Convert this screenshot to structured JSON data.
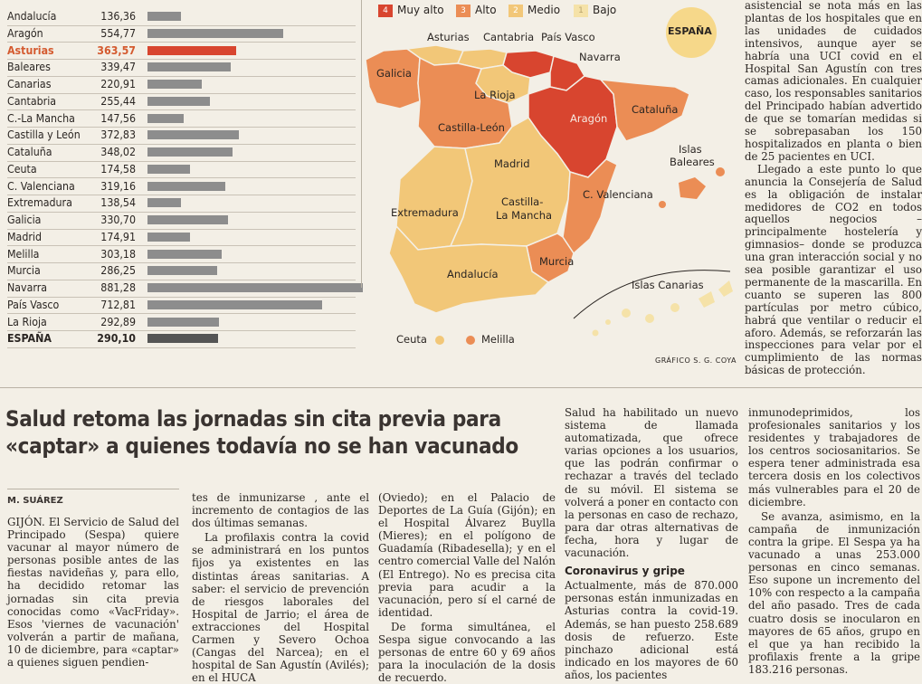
{
  "table": {
    "rows": [
      {
        "name": "Andalucía",
        "value": "136,36",
        "num": 136.36
      },
      {
        "name": "Aragón",
        "value": "554,77",
        "num": 554.77
      },
      {
        "name": "Asturias",
        "value": "363,57",
        "num": 363.57,
        "highlight": true
      },
      {
        "name": "Baleares",
        "value": "339,47",
        "num": 339.47
      },
      {
        "name": "Canarias",
        "value": "220,91",
        "num": 220.91
      },
      {
        "name": "Cantabria",
        "value": "255,44",
        "num": 255.44
      },
      {
        "name": "C.-La Mancha",
        "value": "147,56",
        "num": 147.56
      },
      {
        "name": "Castilla y León",
        "value": "372,83",
        "num": 372.83
      },
      {
        "name": "Cataluña",
        "value": "348,02",
        "num": 348.02
      },
      {
        "name": "Ceuta",
        "value": "174,58",
        "num": 174.58
      },
      {
        "name": "C. Valenciana",
        "value": "319,16",
        "num": 319.16
      },
      {
        "name": "Extremadura",
        "value": "138,54",
        "num": 138.54
      },
      {
        "name": "Galicia",
        "value": "330,70",
        "num": 330.7
      },
      {
        "name": "Madrid",
        "value": "174,91",
        "num": 174.91
      },
      {
        "name": "Melilla",
        "value": "303,18",
        "num": 303.18
      },
      {
        "name": "Murcia",
        "value": "286,25",
        "num": 286.25
      },
      {
        "name": "Navarra",
        "value": "881,28",
        "num": 881.28
      },
      {
        "name": "País Vasco",
        "value": "712,81",
        "num": 712.81
      },
      {
        "name": "La Rioja",
        "value": "292,89",
        "num": 292.89
      },
      {
        "name": "ESPAÑA",
        "value": "290,10",
        "num": 290.1,
        "total": true
      }
    ]
  },
  "map": {
    "legend": [
      {
        "num": "4",
        "label": "Muy alto",
        "color": "#d8452f"
      },
      {
        "num": "3",
        "label": "Alto",
        "color": "#eb8d55"
      },
      {
        "num": "2",
        "label": "Medio",
        "color": "#f2c778"
      },
      {
        "num": "1",
        "label": "Bajo",
        "color": "#f5e2a8"
      }
    ],
    "badge": "ESPAÑA",
    "labels": {
      "asturias": "Asturias",
      "cantabria": "Cantabria",
      "paisvasco": "País Vasco",
      "navarra": "Navarra",
      "galicia": "Galicia",
      "larioja": "La Rioja",
      "aragon": "Aragón",
      "cataluna": "Cataluña",
      "castillaleon": "Castilla-León",
      "baleares1": "Islas",
      "baleares2": "Baleares",
      "madrid": "Madrid",
      "valenciana": "C. Valenciana",
      "extremadura": "Extremadura",
      "castillamancha1": "Castilla-",
      "castillamancha2": "La Mancha",
      "andalucia": "Andalucía",
      "murcia": "Murcia",
      "canarias": "Islas Canarias",
      "ceuta": "Ceuta",
      "melilla": "Melilla"
    },
    "credit": "GRÁFICO S. G. COYA",
    "colors": {
      "muyalto": "#d8452f",
      "alto": "#eb8d55",
      "medio": "#f2c778",
      "bajo": "#f5e2a8"
    }
  },
  "right_column": [
    "asistencial se nota más en las plantas de los hospitales que en las unidades de cuidados intensivos, aunque ayer se habría una UCI covid en el Hospital San Agustín con tres camas adicionales. En cualquier caso, los responsables sanitarios del Principado habían advertido de que se tomarían medidas si se sobrepasaban los 150 hospitalizados en planta o bien de 25 pacientes en UCI.",
    "Llegado a este punto lo que anuncia la Consejería de Salud es la obligación de instalar medidores de CO2 en todos aquellos negocios –principalmente hostelería y gimnasios– donde se produzca una gran interacción social y no sea posible garantizar el uso permanente de la mascarilla. En cuanto se superen las 800 partículas por metro cúbico, habrá que ventilar o reducir el aforo. Además, se reforzarán las inspecciones para velar por el cumplimiento de las normas básicas de protección."
  ],
  "article": {
    "headline": "Salud retoma las jornadas sin cita previa para «captar» a quienes todavía no se han vacunado",
    "byline": "M. SUÁREZ",
    "col1": "GIJÓN. El Servicio de Salud del Principado (Sespa) quiere vacunar al mayor número de personas posible antes de las fiestas navideñas y, para ello, ha decidido retomar las jornadas sin cita previa conocidas como «VacFriday». Esos 'viernes de vacunación' volverán a partir de mañana, 10 de diciembre, para «captar» a quienes siguen pendien-",
    "col2a": "tes de inmunizarse , ante el incremento de contagios de las dos últimas semanas.",
    "col2b": "La profilaxis contra la covid se administrará en los puntos fijos ya existentes en las distintas áreas sanitarias. A saber: el servicio de prevención de riesgos laborales del Hospital de Jarrio; el área de extracciones del Hospital Carmen y Severo Ochoa (Cangas del Narcea); en el hospital de San Agustín (Avilés); en el HUCA",
    "col3a": "(Oviedo); en el Palacio de Deportes de La Guía (Gijón); en el Hospital Álvarez Buylla (Mieres); en el polígono de Guadamía (Ribadesella); y en el centro comercial Valle del Nalón (El Entrego). No es precisa cita previa para acudir a la vacunación, pero sí el carné de identidad.",
    "col3b": "De forma simultánea, el Sespa sigue convocando a las personas de entre 60 y 69 años para la inoculación de la dosis de recuerdo.",
    "col4a": "Salud ha habilitado un nuevo sistema de llamada automatizada, que ofrece varias opciones a los usuarios, que las podrán confirmar o rechazar a través del teclado de su móvil. El sistema se volverá a poner en contacto con la personas en caso de rechazo, para dar otras alternativas de fecha, hora y lugar de vacunación.",
    "col4_sub": "Coronavirus y gripe",
    "col4b": "Actualmente, más de 870.000 personas están inmunizadas en Asturias contra la covid-19. Además, se han puesto 258.689 dosis de refuerzo. Este pinchazo adicional está indicado en los mayores de 60 años, los pacientes",
    "col5a": "inmunodeprimidos, los profesionales sanitarios y los residentes y trabajadores de los centros sociosanitarios. Se espera tener administrada esa tercera dosis en los colectivos más vulnerables para el 20 de diciembre.",
    "col5b": "Se avanza, asimismo, en la campaña de inmunización contra la gripe. El Sespa ya ha vacunado a unas 253.000 personas en cinco semanas. Eso supone un incremento del 10% con respecto a la campaña del año pasado. Tres de cada cuatro dosis se inocularon en mayores de 65 años, grupo en el que ya han recibido la profilaxis frente a la gripe 183.216 personas."
  }
}
